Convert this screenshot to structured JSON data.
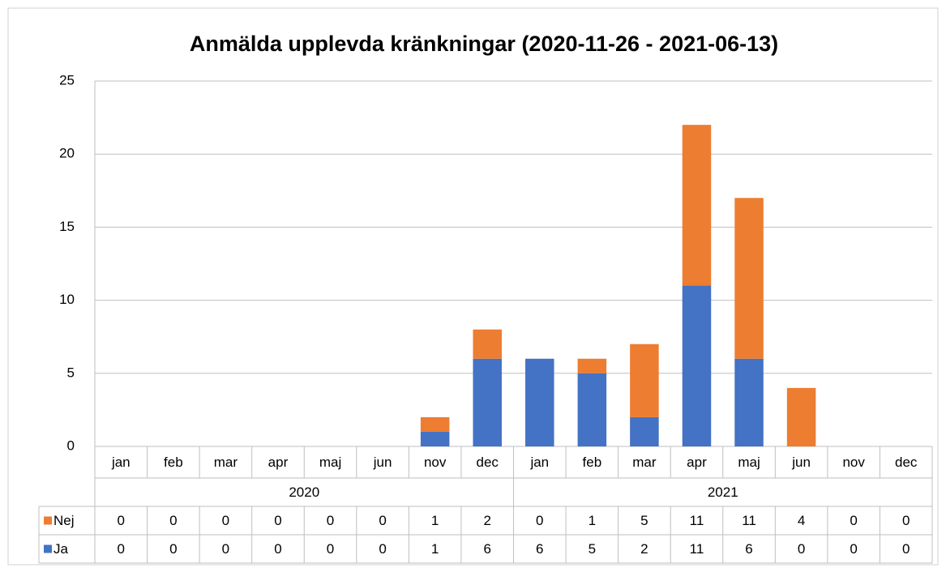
{
  "chart_data": {
    "type": "bar",
    "stacked": true,
    "title": "Anmälda upplevda kränkningar (2020-11-26 - 2021-06-13)",
    "groups": [
      {
        "name": "2020",
        "categories": [
          "jan",
          "feb",
          "mar",
          "apr",
          "maj",
          "jun",
          "nov",
          "dec"
        ]
      },
      {
        "name": "2021",
        "categories": [
          "jan",
          "feb",
          "mar",
          "apr",
          "maj",
          "jun",
          "nov",
          "dec"
        ]
      }
    ],
    "series": [
      {
        "name": "Ja",
        "color": "#4472c4",
        "values": [
          0,
          0,
          0,
          0,
          0,
          0,
          1,
          6,
          6,
          5,
          2,
          11,
          6,
          0,
          0,
          0
        ]
      },
      {
        "name": "Nej",
        "color": "#ed7d31",
        "values": [
          0,
          0,
          0,
          0,
          0,
          0,
          1,
          2,
          0,
          1,
          5,
          11,
          11,
          4,
          0,
          0
        ]
      }
    ],
    "ylim": [
      0,
      25
    ],
    "yticks": [
      0,
      5,
      10,
      15,
      20,
      25
    ],
    "grid": true,
    "data_table": true
  }
}
